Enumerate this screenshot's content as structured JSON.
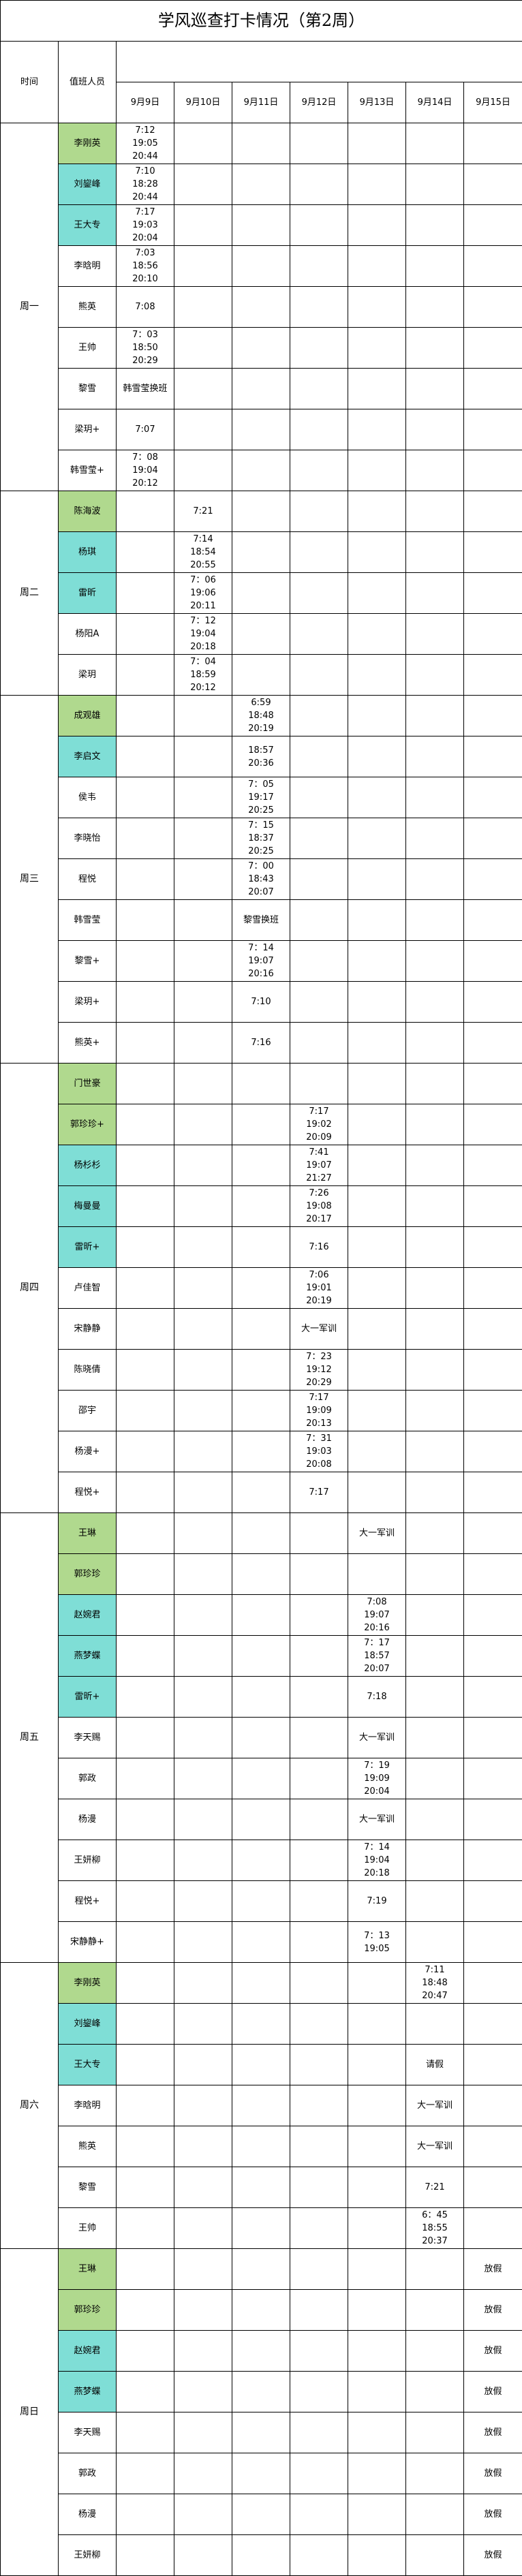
{
  "title": "学风巡查打卡情况（第2周）",
  "header": {
    "time_label": "时间",
    "staff_label": "值班人员"
  },
  "dates": [
    "9月9日",
    "9月10日",
    "9月11日",
    "9月12日",
    "9月13日",
    "9月14日",
    "9月15日"
  ],
  "colors": {
    "green": "#b0d98e",
    "cyan": "#7fded6"
  },
  "groups": [
    {
      "day": "周一",
      "rows": [
        {
          "name": "李刚英",
          "highlight": "green",
          "cells": [
            "7:12\n19:05\n20:44",
            "",
            "",
            "",
            "",
            "",
            ""
          ]
        },
        {
          "name": "刘鋆峰",
          "highlight": "cyan",
          "cells": [
            "7:10\n18:28\n20:44",
            "",
            "",
            "",
            "",
            "",
            ""
          ]
        },
        {
          "name": "王大专",
          "highlight": "cyan",
          "cells": [
            "7:17\n19:03\n20:04",
            "",
            "",
            "",
            "",
            "",
            ""
          ]
        },
        {
          "name": "李晗明",
          "highlight": "",
          "cells": [
            "7:03\n18:56\n20:10",
            "",
            "",
            "",
            "",
            "",
            ""
          ]
        },
        {
          "name": "熊英",
          "highlight": "",
          "cells": [
            "7:08",
            "",
            "",
            "",
            "",
            "",
            ""
          ]
        },
        {
          "name": "王帅",
          "highlight": "",
          "cells": [
            "7：03\n18:50\n20:29",
            "",
            "",
            "",
            "",
            "",
            ""
          ]
        },
        {
          "name": "黎雪",
          "highlight": "",
          "cells": [
            "韩雪莹换班",
            "",
            "",
            "",
            "",
            "",
            ""
          ]
        },
        {
          "name": "梁玥+",
          "highlight": "",
          "cells": [
            "7:07",
            "",
            "",
            "",
            "",
            "",
            ""
          ]
        },
        {
          "name": "韩雪莹+",
          "highlight": "",
          "cells": [
            "7：08\n19:04\n20:12",
            "",
            "",
            "",
            "",
            "",
            ""
          ]
        }
      ]
    },
    {
      "day": "周二",
      "rows": [
        {
          "name": "陈海波",
          "highlight": "green",
          "cells": [
            "",
            "7:21",
            "",
            "",
            "",
            "",
            ""
          ]
        },
        {
          "name": "杨琪",
          "highlight": "cyan",
          "cells": [
            "",
            "7:14\n18:54\n20:55",
            "",
            "",
            "",
            "",
            ""
          ]
        },
        {
          "name": "雷昕",
          "highlight": "cyan",
          "cells": [
            "",
            "7：06\n19:06\n20:11",
            "",
            "",
            "",
            "",
            ""
          ]
        },
        {
          "name": "杨阳A",
          "highlight": "",
          "cells": [
            "",
            "7：12\n19:04\n20:18",
            "",
            "",
            "",
            "",
            ""
          ]
        },
        {
          "name": "梁玥",
          "highlight": "",
          "cells": [
            "",
            "7：04\n18:59\n20:12",
            "",
            "",
            "",
            "",
            ""
          ]
        }
      ]
    },
    {
      "day": "周三",
      "rows": [
        {
          "name": "成观雄",
          "highlight": "green",
          "cells": [
            "",
            "",
            "6:59\n18:48\n20:19",
            "",
            "",
            "",
            ""
          ]
        },
        {
          "name": "李启文",
          "highlight": "cyan",
          "cells": [
            "",
            "",
            "18:57\n20:36",
            "",
            "",
            "",
            ""
          ]
        },
        {
          "name": "侯韦",
          "highlight": "",
          "cells": [
            "",
            "",
            "7：05\n19:17\n20:25",
            "",
            "",
            "",
            ""
          ]
        },
        {
          "name": "李晓怡",
          "highlight": "",
          "cells": [
            "",
            "",
            "7：15\n18:37\n20:25",
            "",
            "",
            "",
            ""
          ]
        },
        {
          "name": "程悦",
          "highlight": "",
          "cells": [
            "",
            "",
            "7：00\n18:43\n20:07",
            "",
            "",
            "",
            ""
          ]
        },
        {
          "name": "韩雪莹",
          "highlight": "",
          "cells": [
            "",
            "",
            "黎雪换班",
            "",
            "",
            "",
            ""
          ]
        },
        {
          "name": "黎雪+",
          "highlight": "",
          "cells": [
            "",
            "",
            "7：14\n19:07\n20:16",
            "",
            "",
            "",
            ""
          ]
        },
        {
          "name": "梁玥+",
          "highlight": "",
          "cells": [
            "",
            "",
            "7:10",
            "",
            "",
            "",
            ""
          ]
        },
        {
          "name": "熊英+",
          "highlight": "",
          "cells": [
            "",
            "",
            "7:16",
            "",
            "",
            "",
            ""
          ]
        }
      ]
    },
    {
      "day": "周四",
      "rows": [
        {
          "name": "门世豪",
          "highlight": "green",
          "cells": [
            "",
            "",
            "",
            "",
            "",
            "",
            ""
          ]
        },
        {
          "name": "郭珍珍+",
          "highlight": "green",
          "cells": [
            "",
            "",
            "",
            "7:17\n19:02\n20:09",
            "",
            "",
            ""
          ]
        },
        {
          "name": "杨杉杉",
          "highlight": "cyan",
          "cells": [
            "",
            "",
            "",
            "7:41\n19:07\n21:27",
            "",
            "",
            ""
          ]
        },
        {
          "name": "梅曼曼",
          "highlight": "cyan",
          "cells": [
            "",
            "",
            "",
            "7:26\n19:08\n20:17",
            "",
            "",
            ""
          ]
        },
        {
          "name": "雷昕+",
          "highlight": "cyan",
          "cells": [
            "",
            "",
            "",
            "7:16",
            "",
            "",
            ""
          ]
        },
        {
          "name": "卢佳智",
          "highlight": "",
          "cells": [
            "",
            "",
            "",
            "7:06\n19:01\n20:19",
            "",
            "",
            ""
          ]
        },
        {
          "name": "宋静静",
          "highlight": "",
          "cells": [
            "",
            "",
            "",
            "大一军训",
            "",
            "",
            ""
          ]
        },
        {
          "name": "陈晓倩",
          "highlight": "",
          "cells": [
            "",
            "",
            "",
            "7：23\n19:12\n20:29",
            "",
            "",
            ""
          ]
        },
        {
          "name": "邵宇",
          "highlight": "",
          "cells": [
            "",
            "",
            "",
            "7:17\n19:09\n20:13",
            "",
            "",
            ""
          ]
        },
        {
          "name": "杨漫+",
          "highlight": "",
          "cells": [
            "",
            "",
            "",
            "7：31\n19:03\n20:08",
            "",
            "",
            ""
          ]
        },
        {
          "name": "程悦+",
          "highlight": "",
          "cells": [
            "",
            "",
            "",
            "7:17",
            "",
            "",
            ""
          ]
        }
      ]
    },
    {
      "day": "周五",
      "rows": [
        {
          "name": "王琳",
          "highlight": "green",
          "cells": [
            "",
            "",
            "",
            "",
            "大一军训",
            "",
            ""
          ]
        },
        {
          "name": "郭珍珍",
          "highlight": "green",
          "cells": [
            "",
            "",
            "",
            "",
            "",
            "",
            ""
          ]
        },
        {
          "name": "赵婉君",
          "highlight": "cyan",
          "cells": [
            "",
            "",
            "",
            "",
            "7:08\n19:07\n20:16",
            "",
            ""
          ]
        },
        {
          "name": "燕梦蝶",
          "highlight": "cyan",
          "cells": [
            "",
            "",
            "",
            "",
            "7：17\n18:57\n20:07",
            "",
            ""
          ]
        },
        {
          "name": "雷昕+",
          "highlight": "cyan",
          "cells": [
            "",
            "",
            "",
            "",
            "7:18",
            "",
            ""
          ]
        },
        {
          "name": "李天赐",
          "highlight": "",
          "cells": [
            "",
            "",
            "",
            "",
            "大一军训",
            "",
            ""
          ]
        },
        {
          "name": "郭政",
          "highlight": "",
          "cells": [
            "",
            "",
            "",
            "",
            "7：19\n19:09\n20:04",
            "",
            ""
          ]
        },
        {
          "name": "杨漫",
          "highlight": "",
          "cells": [
            "",
            "",
            "",
            "",
            "大一军训",
            "",
            ""
          ]
        },
        {
          "name": "王妍柳",
          "highlight": "",
          "cells": [
            "",
            "",
            "",
            "",
            "7：14\n19:04\n20:18",
            "",
            ""
          ]
        },
        {
          "name": "程悦+",
          "highlight": "",
          "cells": [
            "",
            "",
            "",
            "",
            "7:19",
            "",
            ""
          ]
        },
        {
          "name": "宋静静+",
          "highlight": "",
          "cells": [
            "",
            "",
            "",
            "",
            "7：13\n19:05",
            "",
            ""
          ]
        }
      ]
    },
    {
      "day": "周六",
      "rows": [
        {
          "name": "李刚英",
          "highlight": "green",
          "cells": [
            "",
            "",
            "",
            "",
            "",
            "7:11\n18:48\n20:47",
            ""
          ]
        },
        {
          "name": "刘鋆峰",
          "highlight": "cyan",
          "cells": [
            "",
            "",
            "",
            "",
            "",
            "",
            ""
          ]
        },
        {
          "name": "王大专",
          "highlight": "cyan",
          "cells": [
            "",
            "",
            "",
            "",
            "",
            "请假",
            ""
          ]
        },
        {
          "name": "李晗明",
          "highlight": "",
          "cells": [
            "",
            "",
            "",
            "",
            "",
            "大一军训",
            ""
          ]
        },
        {
          "name": "熊英",
          "highlight": "",
          "cells": [
            "",
            "",
            "",
            "",
            "",
            "大一军训",
            ""
          ]
        },
        {
          "name": "黎雪",
          "highlight": "",
          "cells": [
            "",
            "",
            "",
            "",
            "",
            "7:21",
            ""
          ]
        },
        {
          "name": "王帅",
          "highlight": "",
          "cells": [
            "",
            "",
            "",
            "",
            "",
            "6：45\n18:55\n20:37",
            ""
          ]
        }
      ]
    },
    {
      "day": "周日",
      "rows": [
        {
          "name": "王琳",
          "highlight": "green",
          "cells": [
            "",
            "",
            "",
            "",
            "",
            "",
            "放假"
          ]
        },
        {
          "name": "郭珍珍",
          "highlight": "green",
          "cells": [
            "",
            "",
            "",
            "",
            "",
            "",
            "放假"
          ]
        },
        {
          "name": "赵婉君",
          "highlight": "cyan",
          "cells": [
            "",
            "",
            "",
            "",
            "",
            "",
            "放假"
          ]
        },
        {
          "name": "燕梦蝶",
          "highlight": "cyan",
          "cells": [
            "",
            "",
            "",
            "",
            "",
            "",
            "放假"
          ]
        },
        {
          "name": "李天赐",
          "highlight": "",
          "cells": [
            "",
            "",
            "",
            "",
            "",
            "",
            "放假"
          ]
        },
        {
          "name": "郭政",
          "highlight": "",
          "cells": [
            "",
            "",
            "",
            "",
            "",
            "",
            "放假"
          ]
        },
        {
          "name": "杨漫",
          "highlight": "",
          "cells": [
            "",
            "",
            "",
            "",
            "",
            "",
            "放假"
          ]
        },
        {
          "name": "王妍柳",
          "highlight": "",
          "cells": [
            "",
            "",
            "",
            "",
            "",
            "",
            "放假"
          ]
        }
      ]
    }
  ]
}
